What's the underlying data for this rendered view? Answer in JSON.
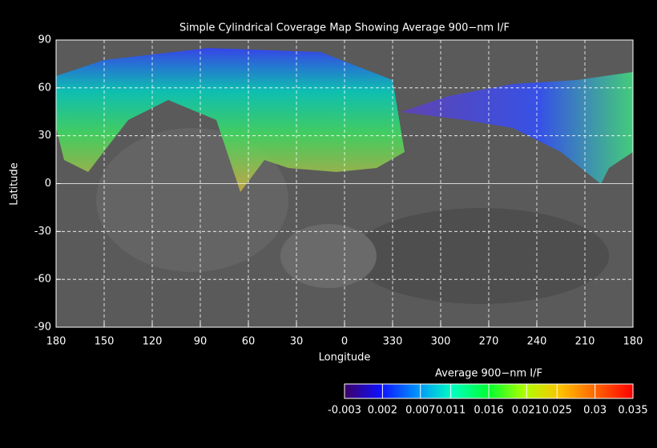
{
  "chart_data": {
    "type": "map",
    "title": "Simple Cylindrical Coverage Map Showing Average 900−nm I/F",
    "xlabel": "Longitude",
    "ylabel": "Latitude",
    "xlim": [
      180,
      -180
    ],
    "xticks": [
      180,
      150,
      120,
      90,
      60,
      30,
      0,
      {
        "value": -30,
        "label": "330"
      },
      {
        "value": -60,
        "label": "300"
      },
      {
        "value": -90,
        "label": "270"
      },
      {
        "value": -120,
        "label": "240"
      },
      {
        "value": -150,
        "label": "210"
      },
      {
        "value": -180,
        "label": "180"
      }
    ],
    "ylim": [
      -90,
      90
    ],
    "yticks": [
      90,
      60,
      30,
      0,
      -30,
      -60,
      -90
    ],
    "grid": true,
    "colorbar": {
      "title": "Average 900−nm I/F",
      "ticks": [
        -0.003,
        0.002,
        0.007,
        0.011,
        0.016,
        0.021,
        0.025,
        0.03,
        0.035
      ],
      "colors": [
        "#3c0064",
        "#1010ff",
        "#0090ff",
        "#00ffc0",
        "#00ff30",
        "#b0ff00",
        "#ffc000",
        "#ff6000",
        "#ff0000"
      ]
    }
  }
}
